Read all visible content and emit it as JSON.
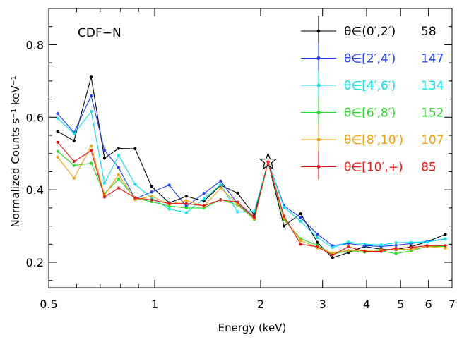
{
  "chart_data": {
    "type": "line",
    "annotation": "CDF−N",
    "xlabel": "Energy (keV)",
    "ylabel": "Normalized Counts s⁻¹ keV⁻¹",
    "x_scale": "log",
    "xlim": [
      0.5,
      7.0
    ],
    "ylim": [
      0.13,
      0.9
    ],
    "x_ticks": [
      0.5,
      1,
      2,
      3,
      4,
      5,
      6,
      7
    ],
    "x_tick_labels": [
      "0.5",
      "1",
      "2",
      "3",
      "4",
      "5",
      "6",
      "7"
    ],
    "y_ticks": [
      0.2,
      0.4,
      0.6,
      0.8
    ],
    "y_tick_labels": [
      "0.2",
      "0.4",
      "0.6",
      "0.8"
    ],
    "grid": false,
    "legend_position": "top-right",
    "star_marker": {
      "x": 2.1,
      "y": 0.477
    },
    "x": [
      0.53,
      0.59,
      0.66,
      0.72,
      0.79,
      0.88,
      0.98,
      1.1,
      1.23,
      1.38,
      1.54,
      1.72,
      1.92,
      2.1,
      2.33,
      2.6,
      2.9,
      3.2,
      3.55,
      3.95,
      4.4,
      4.85,
      5.35,
      5.95,
      6.7
    ],
    "series": [
      {
        "name": "θ∈(0′,2′)",
        "count": "58",
        "color": "#000000",
        "values": [
          0.561,
          0.535,
          0.711,
          0.487,
          0.514,
          0.513,
          0.409,
          0.364,
          0.382,
          0.369,
          0.413,
          0.391,
          0.33,
          0.477,
          0.3,
          0.334,
          0.255,
          0.212,
          0.227,
          0.244,
          0.236,
          0.235,
          0.243,
          0.257,
          0.277
        ]
      },
      {
        "name": "θ∈[2′,4′)",
        "count": "147",
        "color": "#1a3cff",
        "values": [
          0.61,
          0.558,
          0.659,
          0.509,
          0.461,
          0.375,
          0.394,
          0.413,
          0.354,
          0.39,
          0.424,
          0.362,
          0.322,
          0.477,
          0.356,
          0.323,
          0.278,
          0.246,
          0.252,
          0.246,
          0.244,
          0.247,
          0.252,
          0.258,
          0.264
        ]
      },
      {
        "name": "θ∈[4′,6′)",
        "count": "134",
        "color": "#00e5ee",
        "values": [
          0.597,
          0.555,
          0.616,
          0.418,
          0.495,
          0.415,
          0.378,
          0.347,
          0.337,
          0.375,
          0.414,
          0.339,
          0.341,
          0.477,
          0.352,
          0.313,
          0.268,
          0.241,
          0.256,
          0.25,
          0.248,
          0.254,
          0.255,
          0.256,
          0.265
        ]
      },
      {
        "name": "θ∈[6′,8′)",
        "count": "152",
        "color": "#22dd22",
        "values": [
          0.506,
          0.467,
          0.473,
          0.389,
          0.43,
          0.377,
          0.367,
          0.355,
          0.35,
          0.35,
          0.373,
          0.358,
          0.318,
          0.477,
          0.318,
          0.265,
          0.247,
          0.222,
          0.232,
          0.228,
          0.232,
          0.224,
          0.232,
          0.244,
          0.244
        ]
      },
      {
        "name": "θ∈[8′,10′)",
        "count": "107",
        "color": "#f5a000",
        "values": [
          0.49,
          0.432,
          0.521,
          0.385,
          0.442,
          0.373,
          0.382,
          0.36,
          0.37,
          0.355,
          0.405,
          0.36,
          0.32,
          0.477,
          0.322,
          0.26,
          0.24,
          0.226,
          0.233,
          0.232,
          0.234,
          0.236,
          0.236,
          0.244,
          0.239
        ]
      },
      {
        "name": "θ∈[10′,+)",
        "count": "85",
        "color": "#ee1111",
        "values": [
          0.531,
          0.478,
          0.508,
          0.38,
          0.405,
          0.378,
          0.372,
          0.362,
          0.362,
          0.356,
          0.372,
          0.366,
          0.324,
          0.477,
          0.327,
          0.25,
          0.243,
          0.22,
          0.243,
          0.23,
          0.23,
          0.239,
          0.241,
          0.246,
          0.246
        ]
      }
    ]
  }
}
